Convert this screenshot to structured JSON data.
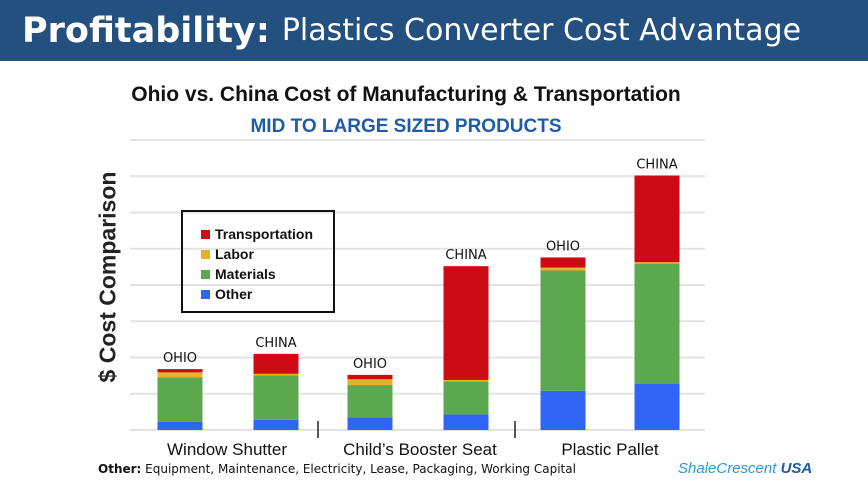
{
  "header": {
    "bold": "Profitability:",
    "rest": "Plastics Converter Cost Advantage",
    "bg_color": "#24507f"
  },
  "chart_data": {
    "type": "bar",
    "stacked": true,
    "title": "Ohio vs. China Cost of Manufacturing & Transportation",
    "subtitle": "MID TO LARGE SIZED PRODUCTS",
    "ylabel": "$ Cost Comparison",
    "ylim": [
      0,
      8
    ],
    "grid": true,
    "legend_placement": "top-left",
    "groups": [
      "Window Shutter",
      "Child’s Booster Seat",
      "Plastic Pallet"
    ],
    "bar_labels": [
      "OHIO",
      "CHINA",
      "OHIO",
      "CHINA",
      "OHIO",
      "CHINA"
    ],
    "series": [
      {
        "name": "Other",
        "color": "#2f64f5",
        "values": [
          0.23,
          0.28,
          0.35,
          0.43,
          1.08,
          1.28
        ]
      },
      {
        "name": "Materials",
        "color": "#5ba84e",
        "values": [
          1.22,
          1.23,
          0.89,
          0.91,
          3.32,
          3.31
        ]
      },
      {
        "name": "Labor",
        "color": "#e8b12c",
        "values": [
          0.14,
          0.04,
          0.16,
          0.04,
          0.08,
          0.04
        ]
      },
      {
        "name": "Transportation",
        "color": "#cc0b14",
        "values": [
          0.09,
          0.55,
          0.12,
          3.14,
          0.28,
          2.39
        ]
      }
    ],
    "legend_order": [
      "Transportation",
      "Labor",
      "Materials",
      "Other"
    ]
  },
  "footnote": {
    "label": "Other:",
    "text": "Equipment, Maintenance, Electricity, Lease, Packaging, Working Capital"
  },
  "logo": {
    "text1": "Shale",
    "text2": "Crescent",
    "text3": "USA"
  }
}
